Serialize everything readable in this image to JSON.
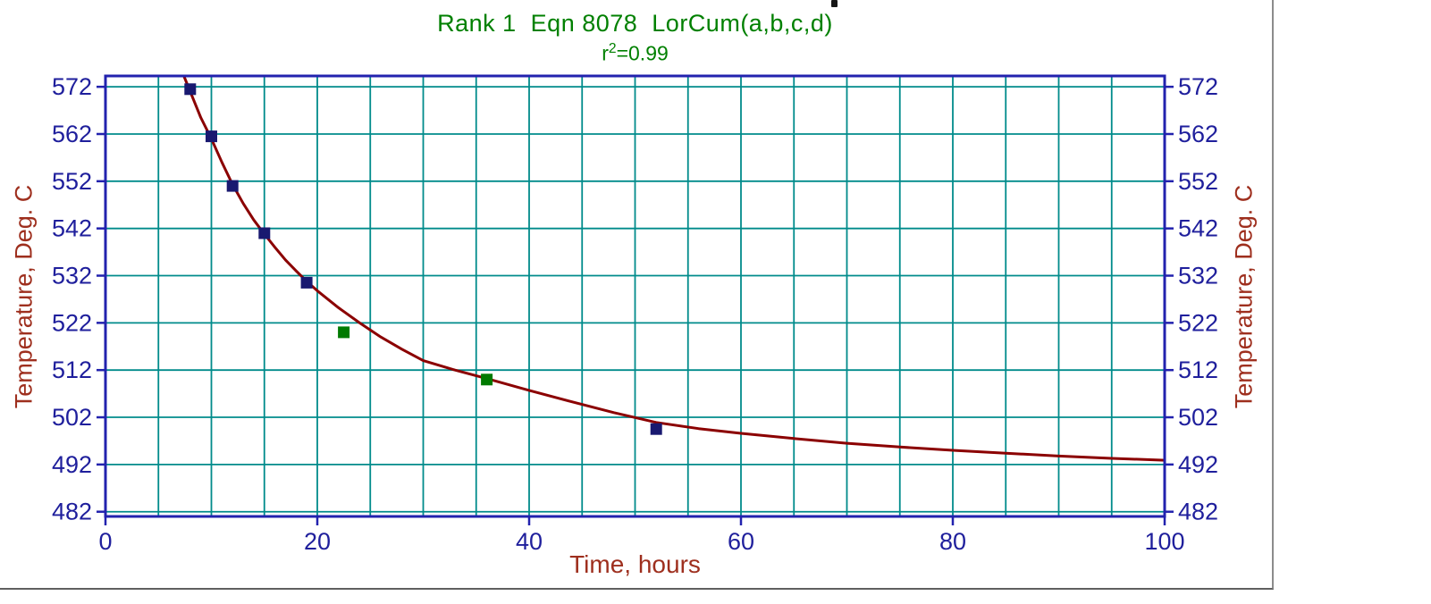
{
  "chart": {
    "title": "Rank 1  Eqn 8078  LorCum(a,b,c,d)",
    "subtitle": {
      "base": "r",
      "sup": "2",
      "rest": "=0.99"
    },
    "xlabel": "Time, hours",
    "ylabel_left": "Temperature, Deg. C",
    "ylabel_right": "Temperature, Deg. C"
  },
  "colors": {
    "title_green": "#008000",
    "axis_label_red": "#9e2f1e",
    "tick_label_navy": "#1f1f9c",
    "grid_teal": "#008b8b",
    "border_blue": "#2222ae",
    "curve_dark_red": "#8b0000",
    "point_navy": "#191970",
    "point_green": "#007a00"
  },
  "chart_data": {
    "type": "scatter",
    "title": "Rank 1  Eqn 8078  LorCum(a,b,c,d)",
    "subtitle": "r^2=0.99",
    "xlabel": "Time, hours",
    "ylabel": "Temperature, Deg. C",
    "xlim": [
      0,
      100
    ],
    "ylim": [
      481,
      574.3
    ],
    "x_major_ticks": [
      0,
      20,
      40,
      60,
      80,
      100
    ],
    "x_grid_step": 5,
    "y_major_ticks": [
      482,
      492,
      502,
      512,
      522,
      532,
      542,
      552,
      562,
      572
    ],
    "grid": true,
    "legend": false,
    "series": [
      {
        "name": "data-points-navy",
        "type": "scatter",
        "marker": "square",
        "color_key": "point_navy",
        "points": [
          [
            8,
            571.5
          ],
          [
            10,
            561.5
          ],
          [
            12,
            551
          ],
          [
            15,
            541
          ],
          [
            19,
            530.5
          ],
          [
            52,
            499.5
          ]
        ]
      },
      {
        "name": "data-points-green",
        "type": "scatter",
        "marker": "square",
        "color_key": "point_green",
        "points": [
          [
            22.5,
            520
          ],
          [
            36,
            510
          ]
        ]
      },
      {
        "name": "lorcum-fit-curve",
        "type": "line",
        "color_key": "curve_dark_red",
        "points": [
          [
            7.4,
            574.3
          ],
          [
            8,
            571
          ],
          [
            9,
            565.5
          ],
          [
            10,
            561
          ],
          [
            11,
            556
          ],
          [
            12,
            551.3
          ],
          [
            13,
            547.3
          ],
          [
            14,
            543.8
          ],
          [
            15,
            540.8
          ],
          [
            16,
            538
          ],
          [
            17,
            535.3
          ],
          [
            18,
            533
          ],
          [
            19,
            530.8
          ],
          [
            20,
            528.8
          ],
          [
            22,
            525.2
          ],
          [
            24,
            522
          ],
          [
            26,
            519
          ],
          [
            28,
            516.4
          ],
          [
            30,
            514
          ],
          [
            33,
            512
          ],
          [
            36,
            510.2
          ],
          [
            40,
            507.7
          ],
          [
            44,
            505.3
          ],
          [
            48,
            503
          ],
          [
            52,
            500.9
          ],
          [
            56,
            499.6
          ],
          [
            60,
            498.6
          ],
          [
            65,
            497.5
          ],
          [
            70,
            496.5
          ],
          [
            75,
            495.7
          ],
          [
            80,
            495
          ],
          [
            85,
            494.4
          ],
          [
            90,
            493.8
          ],
          [
            95,
            493.3
          ],
          [
            100,
            492.9
          ]
        ]
      }
    ]
  }
}
